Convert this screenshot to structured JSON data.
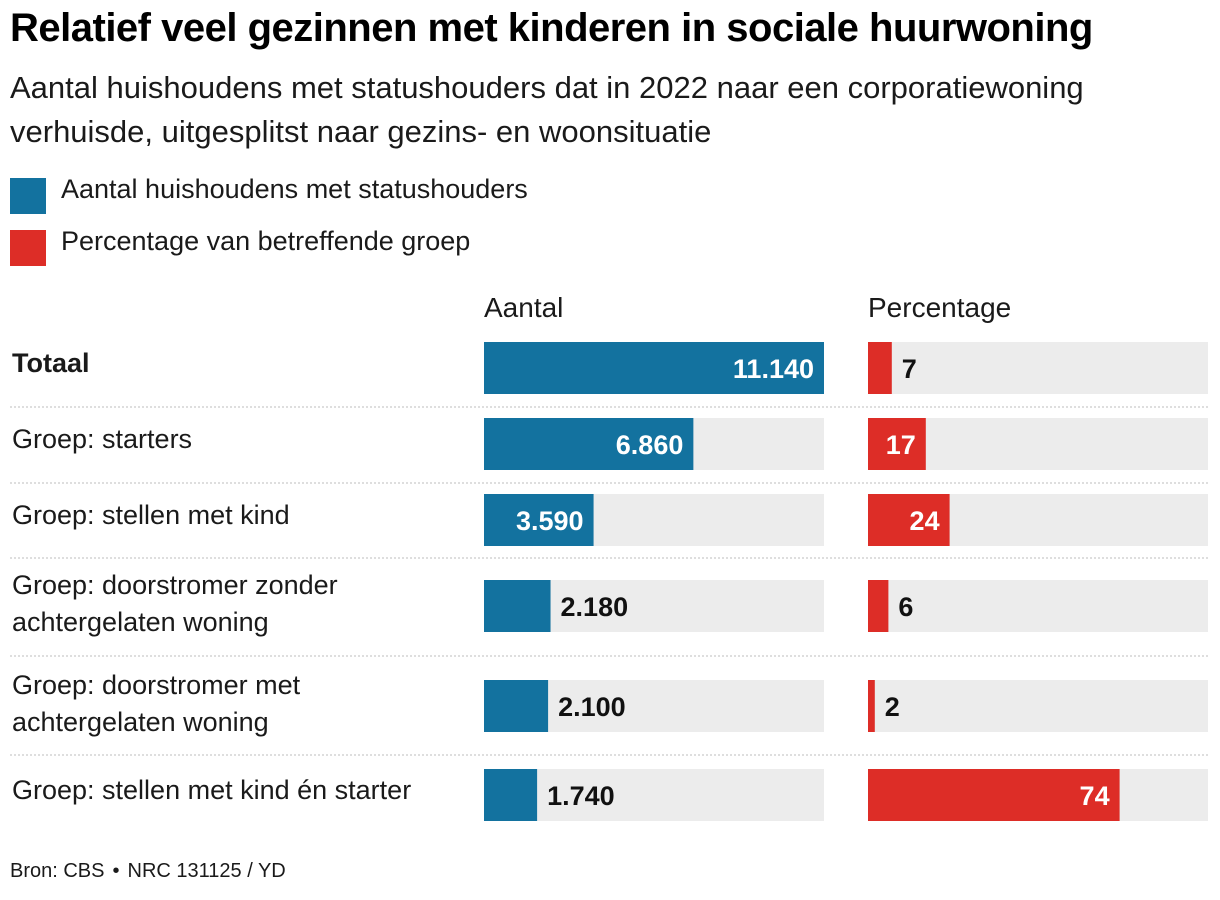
{
  "colors": {
    "blue": "#13729f",
    "red": "#dd2d27",
    "track": "#ececec",
    "divider": "#bdbdbd"
  },
  "chart_data": {
    "type": "bar",
    "title": "Relatief veel gezinnen met kinderen in sociale huurwoning",
    "subtitle": "Aantal huishoudens met statushouders dat in 2022 naar een corporatiewoning verhuisde, uitgesplitst naar gezins- en woonsituatie",
    "legend": [
      {
        "label": "Aantal huishoudens met statushouders",
        "color": "#13729f"
      },
      {
        "label": "Percentage van betreffende groep",
        "color": "#dd2d27"
      }
    ],
    "columns": [
      "Aantal",
      "Percentage"
    ],
    "categories": [
      [
        "Totaal"
      ],
      [
        "Groep: starters"
      ],
      [
        "Groep: stellen met kind"
      ],
      [
        "Groep: doorstromer zonder",
        "achtergelaten woning"
      ],
      [
        "Groep: doorstromer met",
        "achtergelaten woning"
      ],
      [
        "Groep: stellen met kind én starter"
      ]
    ],
    "series": [
      {
        "name": "Aantal huishoudens met statushouders",
        "values": [
          11140,
          6860,
          3590,
          2180,
          2100,
          1740
        ],
        "labels": [
          "11.140",
          "6.860",
          "3.590",
          "2.180",
          "2.100",
          "1.740"
        ],
        "max": 11140,
        "color": "#13729f"
      },
      {
        "name": "Percentage van betreffende groep",
        "values": [
          7,
          17,
          24,
          6,
          2,
          74
        ],
        "labels": [
          "7",
          "17",
          "24",
          "6",
          "2",
          "74"
        ],
        "max": 100,
        "color": "#dd2d27"
      }
    ]
  },
  "footer": {
    "source": "Bron: CBS",
    "separator": "•",
    "credit": "NRC 131125 / YD"
  }
}
